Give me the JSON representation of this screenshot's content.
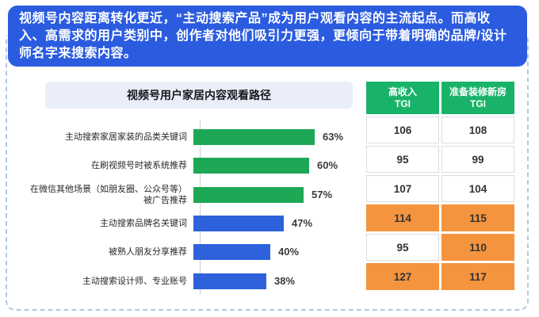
{
  "banner": {
    "text": "视频号内容距离转化更近，“主动搜索产品”成为用户观看内容的主流起点。而高收入、高需求的用户类别中，创作者对他们吸引力更强，更倾向于带着明确的品牌/设计师名字来搜索内容。"
  },
  "colors": {
    "banner_bg": "#2b5ce0",
    "green_bar": "#1ea855",
    "blue_bar": "#2d62dc",
    "table_header_green": "#19b269",
    "highlight_orange": "#f5943e",
    "title_bar_bg": "#eaeef8",
    "dashed_border": "#b0c6e8"
  },
  "chart_data": [
    {
      "type": "bar",
      "orientation": "horizontal",
      "title": "视频号用户家居内容观看路径",
      "categories": [
        "主动搜索家居家装的品类关键词",
        "在刷视频号时被系统推荐",
        "在微信其他场景（如朋友圈、公众号等）被广告推荐",
        "主动搜索品牌名关键词",
        "被熟人朋友分享推荐",
        "主动搜索设计师、专业账号"
      ],
      "values": [
        63,
        60,
        57,
        47,
        40,
        38
      ],
      "value_labels": [
        "63%",
        "60%",
        "57%",
        "47%",
        "40%",
        "38%"
      ],
      "bar_colors": [
        "#1ea855",
        "#1ea855",
        "#1ea855",
        "#2d62dc",
        "#2d62dc",
        "#2d62dc"
      ],
      "xlim": [
        0,
        70
      ],
      "grid": false,
      "legend": "none"
    },
    {
      "type": "table",
      "columns": [
        {
          "label": "高收入",
          "sub": "TGI"
        },
        {
          "label": "准备装修新房",
          "sub": "TGI"
        }
      ],
      "rows": [
        {
          "cells": [
            {
              "value": "106",
              "highlight": false
            },
            {
              "value": "108",
              "highlight": false
            }
          ]
        },
        {
          "cells": [
            {
              "value": "95",
              "highlight": false
            },
            {
              "value": "99",
              "highlight": false
            }
          ]
        },
        {
          "cells": [
            {
              "value": "107",
              "highlight": false
            },
            {
              "value": "104",
              "highlight": false
            }
          ]
        },
        {
          "cells": [
            {
              "value": "114",
              "highlight": true
            },
            {
              "value": "115",
              "highlight": true
            }
          ]
        },
        {
          "cells": [
            {
              "value": "95",
              "highlight": false
            },
            {
              "value": "110",
              "highlight": true
            }
          ]
        },
        {
          "cells": [
            {
              "value": "127",
              "highlight": true
            },
            {
              "value": "117",
              "highlight": true
            }
          ]
        }
      ]
    }
  ]
}
